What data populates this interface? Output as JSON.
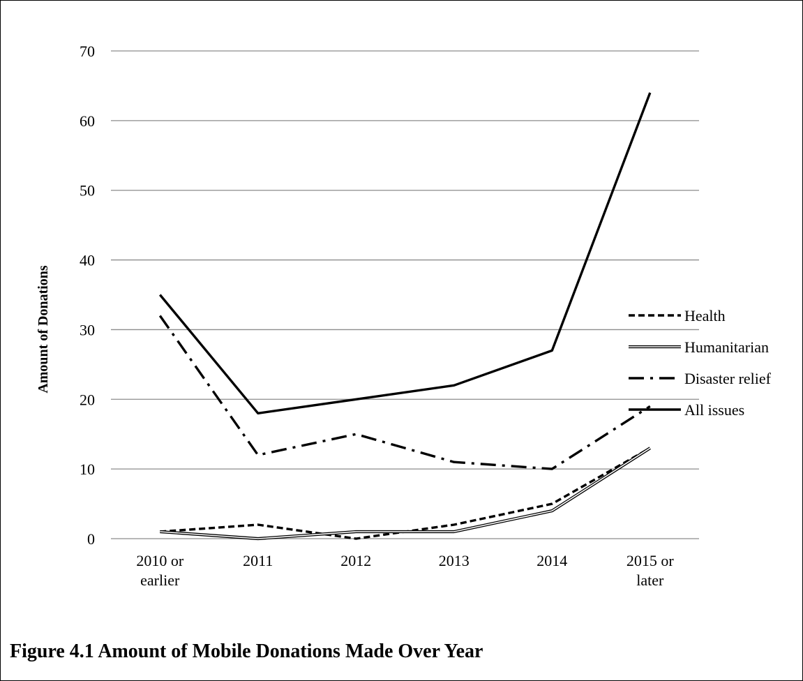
{
  "caption": "Figure 4.1 Amount of Mobile Donations Made Over Year",
  "chart_data": {
    "type": "line",
    "title": "",
    "xlabel": "",
    "ylabel": "Amount of Donations",
    "categories": [
      [
        "2010 or",
        "earlier"
      ],
      [
        "2011"
      ],
      [
        "2012"
      ],
      [
        "2013"
      ],
      [
        "2014"
      ],
      [
        "2015 or",
        "later"
      ]
    ],
    "ylim": [
      0,
      70
    ],
    "yticks": [
      0,
      10,
      20,
      30,
      40,
      50,
      60,
      70
    ],
    "grid": true,
    "legend_position": "right",
    "series": [
      {
        "name": "Health",
        "style": "dashed",
        "values": [
          1,
          2,
          0,
          2,
          5,
          13
        ]
      },
      {
        "name": "Humanitarian",
        "style": "double",
        "values": [
          1,
          0,
          1,
          1,
          4,
          13
        ]
      },
      {
        "name": "Disaster relief",
        "style": "dash-dot",
        "values": [
          32,
          12,
          15,
          11,
          10,
          19
        ]
      },
      {
        "name": "All issues",
        "style": "solid",
        "values": [
          35,
          18,
          20,
          22,
          27,
          64
        ]
      }
    ]
  }
}
